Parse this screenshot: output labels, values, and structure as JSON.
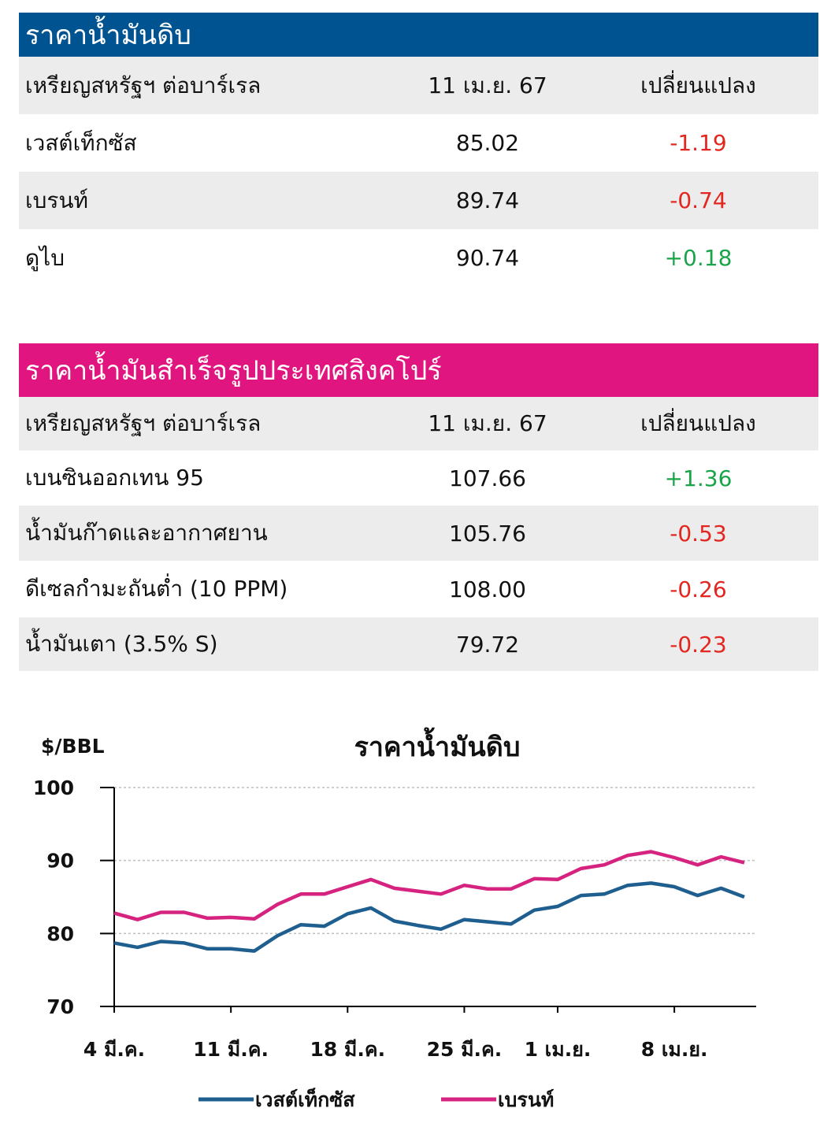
{
  "crude": {
    "title": "ราคาน้ำมันดิบ",
    "header": {
      "col1": "เหรียญสหรัฐฯ ต่อบาร์เรล",
      "col2": "11 เม.ย. 67",
      "col3": "เปลี่ยนแปลง"
    },
    "rows": [
      {
        "name": "เวสต์เท็กซัส",
        "price": "85.02",
        "change": "-1.19"
      },
      {
        "name": "เบรนท์",
        "price": "89.74",
        "change": "-0.74"
      },
      {
        "name": "ดูไบ",
        "price": "90.74",
        "change": "+0.18"
      }
    ]
  },
  "refined": {
    "title": "ราคาน้ำมันสำเร็จรูปประเทศสิงคโปร์",
    "header": {
      "col1": "เหรียญสหรัฐฯ ต่อบาร์เรล",
      "col2": "11 เม.ย. 67",
      "col3": "เปลี่ยนแปลง"
    },
    "rows": [
      {
        "name": "เบนซินออกเทน 95",
        "price": "107.66",
        "change": "+1.36"
      },
      {
        "name": "น้ำมันก๊าดและอากาศยาน",
        "price": "105.76",
        "change": "-0.53"
      },
      {
        "name": "ดีเซลกำมะถันต่ำ (10 PPM)",
        "price": "108.00",
        "change": "-0.26"
      },
      {
        "name": "น้ำมันเตา (3.5% S)",
        "price": "79.72",
        "change": "-0.23"
      }
    ]
  },
  "colors": {
    "blue_banner": "#005391",
    "pink_banner": "#e0157f",
    "negative": "#e3261f",
    "positive": "#1aa44a",
    "wti_line": "#1f5f8f",
    "brent_line": "#d6237f"
  },
  "chart_data": {
    "type": "line",
    "title": "ราคาน้ำมันดิบ",
    "ylabel": "$/BBL",
    "xlabel": "",
    "ylim": [
      70,
      100
    ],
    "yticks": [
      "70",
      "80",
      "90",
      "100"
    ],
    "xtick_labels": [
      "4 มี.ค.",
      "11 มี.ค.",
      "18 มี.ค.",
      "25 มี.ค.",
      "1 เม.ย.",
      "8 เม.ย."
    ],
    "x": [
      "4 มี.ค.",
      "5 มี.ค.",
      "6 มี.ค.",
      "7 มี.ค.",
      "8 มี.ค.",
      "11 มี.ค.",
      "12 มี.ค.",
      "13 มี.ค.",
      "14 มี.ค.",
      "15 มี.ค.",
      "18 มี.ค.",
      "19 มี.ค.",
      "20 มี.ค.",
      "21 มี.ค.",
      "22 มี.ค.",
      "25 มี.ค.",
      "26 มี.ค.",
      "27 มี.ค.",
      "28 มี.ค.",
      "1 เม.ย.",
      "2 เม.ย.",
      "3 เม.ย.",
      "4 เม.ย.",
      "5 เม.ย.",
      "8 เม.ย.",
      "9 เม.ย.",
      "10 เม.ย.",
      "11 เม.ย."
    ],
    "series": [
      {
        "name": "เวสต์เท็กซัส",
        "values": [
          78.7,
          78.1,
          78.9,
          78.7,
          77.9,
          77.9,
          77.6,
          79.7,
          81.2,
          81.0,
          82.7,
          83.5,
          81.7,
          81.1,
          80.6,
          81.9,
          81.6,
          81.3,
          83.2,
          83.7,
          85.2,
          85.4,
          86.6,
          86.9,
          86.4,
          85.2,
          86.2,
          85.0
        ]
      },
      {
        "name": "เบรนท์",
        "values": [
          82.8,
          81.9,
          82.9,
          82.9,
          82.1,
          82.2,
          82.0,
          84.0,
          85.4,
          85.4,
          86.4,
          87.4,
          86.2,
          85.8,
          85.4,
          86.6,
          86.1,
          86.1,
          87.5,
          87.4,
          88.9,
          89.4,
          90.7,
          91.2,
          90.4,
          89.4,
          90.5,
          89.7
        ]
      }
    ],
    "grid": "horizontal dashed",
    "legend": "bottom"
  }
}
